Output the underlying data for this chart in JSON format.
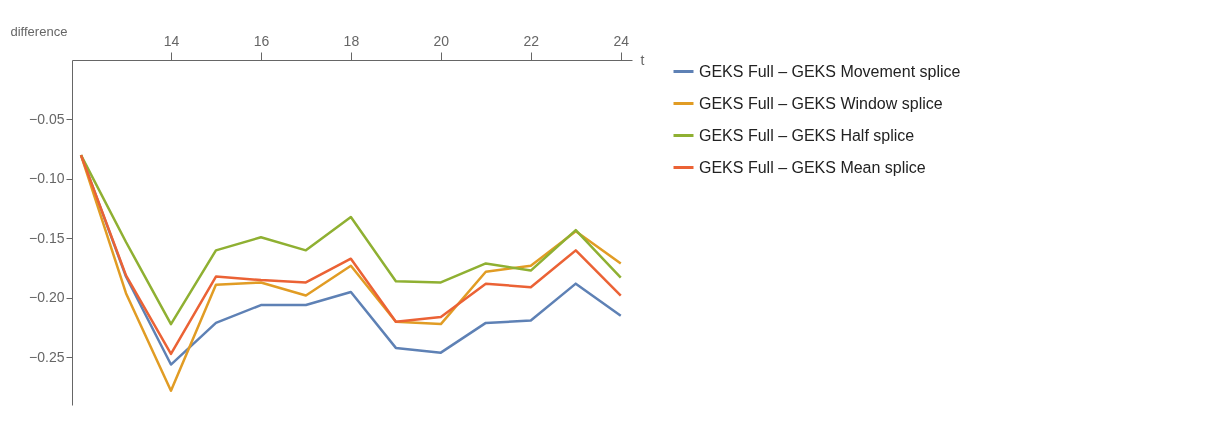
{
  "chart_data": {
    "type": "line",
    "xlabel": "t",
    "ylabel": "difference",
    "x": [
      12,
      13,
      14,
      15,
      16,
      17,
      18,
      19,
      20,
      21,
      22,
      23,
      24
    ],
    "series": [
      {
        "name": "GEKS Full – GEKS Movement splice",
        "color": "#5e81b5",
        "values": [
          -0.08,
          -0.182,
          -0.256,
          -0.221,
          -0.206,
          -0.206,
          -0.195,
          -0.242,
          -0.246,
          -0.221,
          -0.219,
          -0.188,
          -0.215
        ]
      },
      {
        "name": "GEKS Full – GEKS Window splice",
        "color": "#e19c24",
        "values": [
          -0.08,
          -0.196,
          -0.278,
          -0.189,
          -0.187,
          -0.198,
          -0.173,
          -0.22,
          -0.222,
          -0.178,
          -0.173,
          -0.144,
          -0.171
        ]
      },
      {
        "name": "GEKS Full – GEKS Half splice",
        "color": "#8fb032",
        "values": [
          -0.08,
          -0.153,
          -0.222,
          -0.16,
          -0.149,
          -0.16,
          -0.132,
          -0.186,
          -0.187,
          -0.171,
          -0.177,
          -0.143,
          -0.183
        ]
      },
      {
        "name": "GEKS Full – GEKS Mean splice",
        "color": "#eb6235",
        "values": [
          -0.08,
          -0.181,
          -0.247,
          -0.182,
          -0.185,
          -0.187,
          -0.167,
          -0.22,
          -0.216,
          -0.188,
          -0.191,
          -0.16,
          -0.198
        ]
      }
    ],
    "xlim": [
      11.8,
      24.25
    ],
    "ylim": [
      -0.29,
      0
    ],
    "xticks": [
      14,
      16,
      18,
      20,
      22,
      24
    ],
    "yticks": [
      -0.05,
      {
        "value": -0.1,
        "label": "−0.10"
      },
      -0.15,
      {
        "value": -0.2,
        "label": "−0.20"
      },
      -0.25
    ],
    "grid": false,
    "legend": "right",
    "marker": "none",
    "line_style": "solid"
  }
}
